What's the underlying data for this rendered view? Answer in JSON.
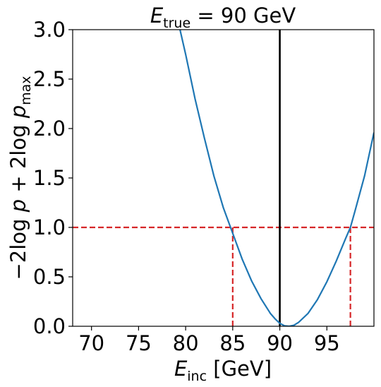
{
  "chart_data": {
    "type": "line",
    "title": {
      "symbol": "E",
      "subscript": "true",
      "rest": " = 90 GeV"
    },
    "xlabel": {
      "symbol": "E",
      "subscript": "inc",
      "rest": " [GeV]"
    },
    "ylabel": {
      "prefix": "−2log ",
      "p1": "p",
      "middle": " + 2log ",
      "p2": "p",
      "subscript": "max"
    },
    "xlim": [
      68,
      100
    ],
    "ylim": [
      0,
      3
    ],
    "xticks": [
      70,
      75,
      80,
      85,
      90,
      95
    ],
    "xtick_labels": [
      "70",
      "75",
      "80",
      "85",
      "90",
      "95"
    ],
    "yticks": [
      0,
      0.5,
      1,
      1.5,
      2,
      2.5,
      3
    ],
    "ytick_labels": [
      "0.0",
      "0.5",
      "1.0",
      "1.5",
      "2.0",
      "2.5",
      "3.0"
    ],
    "grid": false,
    "series": [
      {
        "color": "#1f77b4",
        "x": [
          79.4,
          80.0,
          81.0,
          82.0,
          83.0,
          84.0,
          85.0,
          86.0,
          87.0,
          88.0,
          89.0,
          89.5,
          90.0,
          90.5,
          91.0,
          91.5,
          92.0,
          93.0,
          94.0,
          95.0,
          96.0,
          97.0,
          97.5,
          98.0,
          99.0,
          100.0
        ],
        "y": [
          3.0,
          2.75,
          2.3,
          1.9,
          1.52,
          1.2,
          0.94,
          0.68,
          0.46,
          0.28,
          0.13,
          0.075,
          0.03,
          0.005,
          0.0,
          0.01,
          0.04,
          0.13,
          0.27,
          0.45,
          0.66,
          0.89,
          1.0,
          1.17,
          1.52,
          1.96
        ]
      }
    ],
    "vlines": [
      {
        "x": 90,
        "color": "#000000",
        "style": "solid"
      },
      {
        "x": 85,
        "ymax": 1.0,
        "color": "#d62728",
        "style": "dashed"
      },
      {
        "x": 97.5,
        "ymax": 1.0,
        "color": "#d62728",
        "style": "dashed"
      }
    ],
    "hlines": [
      {
        "y": 1.0,
        "xmin": 68,
        "xmax": 100,
        "color": "#d62728",
        "style": "dashed"
      }
    ]
  }
}
